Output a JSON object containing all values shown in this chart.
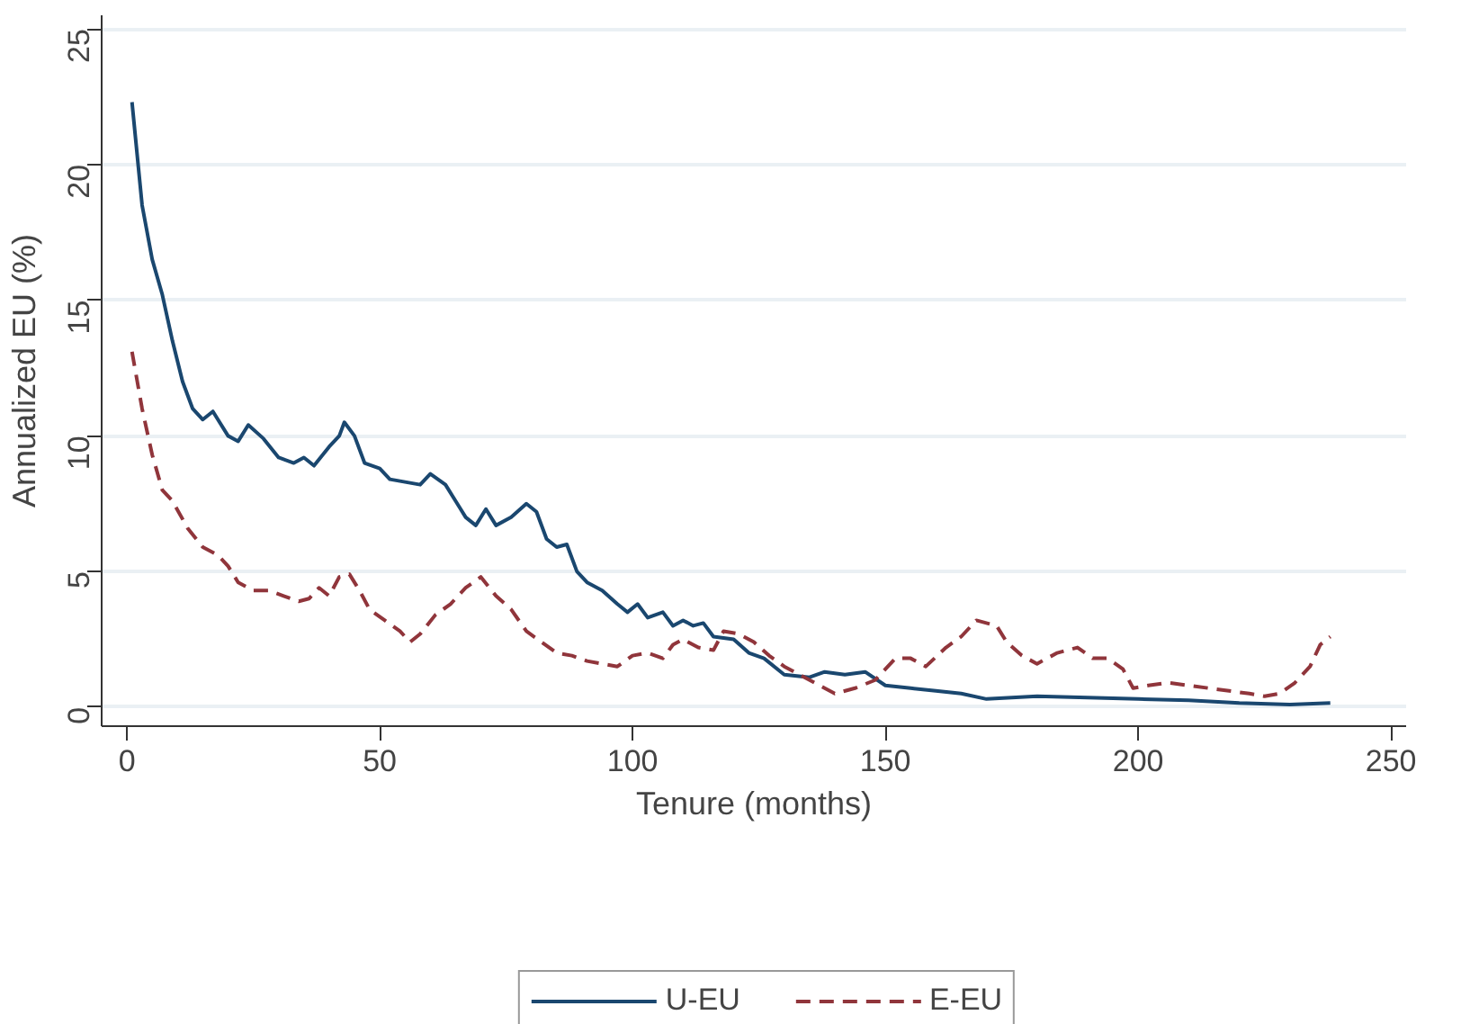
{
  "chart_data": {
    "type": "line",
    "xlabel": "Tenure (months)",
    "ylabel": "Annualized EU (%)",
    "xlim": [
      -5,
      253
    ],
    "ylim": [
      -0.7,
      25.5
    ],
    "xticks": [
      0,
      50,
      100,
      150,
      200,
      250
    ],
    "yticks": [
      0,
      5,
      10,
      15,
      20,
      25
    ],
    "grid": "y",
    "legend": "bottom",
    "series": [
      {
        "name": "U-EU",
        "color": "#1a476f",
        "line_style": "solid",
        "x": [
          1,
          3,
          5,
          7,
          9,
          11,
          13,
          15,
          17,
          20,
          22,
          24,
          27,
          30,
          33,
          35,
          37,
          40,
          42,
          43,
          45,
          47,
          50,
          52,
          55,
          58,
          60,
          63,
          65,
          67,
          69,
          71,
          73,
          76,
          79,
          81,
          83,
          85,
          87,
          89,
          91,
          94,
          97,
          99,
          101,
          103,
          106,
          108,
          110,
          112,
          114,
          116,
          120,
          123,
          126,
          130,
          135,
          138,
          142,
          146,
          150,
          155,
          160,
          165,
          170,
          180,
          190,
          200,
          210,
          220,
          230,
          238
        ],
        "values": [
          22.3,
          18.5,
          16.5,
          15.2,
          13.5,
          12,
          11,
          10.6,
          10.9,
          10,
          9.8,
          10.4,
          9.9,
          9.2,
          9,
          9.2,
          8.9,
          9.6,
          10,
          10.5,
          10,
          9,
          8.8,
          8.4,
          8.3,
          8.2,
          8.6,
          8.2,
          7.6,
          7,
          6.7,
          7.3,
          6.7,
          7,
          7.5,
          7.2,
          6.2,
          5.9,
          6,
          5,
          4.6,
          4.3,
          3.8,
          3.5,
          3.8,
          3.3,
          3.5,
          3,
          3.2,
          3,
          3.1,
          2.6,
          2.5,
          2,
          1.8,
          1.2,
          1.1,
          1.3,
          1.2,
          1.3,
          0.8,
          0.7,
          0.6,
          0.5,
          0.3,
          0.4,
          0.35,
          0.3,
          0.25,
          0.15,
          0.1,
          0.15
        ]
      },
      {
        "name": "E-EU",
        "color": "#90353b",
        "line_style": "dashed",
        "x": [
          1,
          3,
          5,
          7,
          9,
          12,
          15,
          18,
          20,
          22,
          25,
          28,
          31,
          34,
          36,
          38,
          40,
          42,
          44,
          46,
          48,
          51,
          54,
          56,
          58,
          61,
          64,
          67,
          70,
          73,
          76,
          79,
          82,
          85,
          88,
          91,
          94,
          97,
          100,
          103,
          106,
          108,
          110,
          113,
          116,
          118,
          121,
          124,
          127,
          130,
          133,
          136,
          140,
          144,
          148,
          150,
          152,
          155,
          158,
          162,
          165,
          168,
          172,
          174,
          177,
          180,
          184,
          188,
          191,
          194,
          197,
          199,
          202,
          206,
          210,
          214,
          218,
          222,
          225,
          228,
          231,
          234,
          236,
          238
        ],
        "values": [
          13.1,
          11,
          9.3,
          8,
          7.6,
          6.6,
          5.9,
          5.6,
          5.2,
          4.6,
          4.3,
          4.3,
          4.1,
          3.9,
          4,
          4.4,
          4.1,
          4.8,
          4.9,
          4.3,
          3.6,
          3.2,
          2.8,
          2.4,
          2.7,
          3.4,
          3.8,
          4.4,
          4.8,
          4.1,
          3.6,
          2.8,
          2.4,
          2,
          1.9,
          1.7,
          1.6,
          1.5,
          1.9,
          2,
          1.8,
          2.3,
          2.5,
          2.2,
          2.1,
          2.8,
          2.7,
          2.4,
          1.9,
          1.5,
          1.2,
          0.9,
          0.5,
          0.7,
          1,
          1.4,
          1.8,
          1.8,
          1.5,
          2.2,
          2.6,
          3.2,
          3,
          2.4,
          1.9,
          1.6,
          2,
          2.2,
          1.8,
          1.8,
          1.4,
          0.7,
          0.8,
          0.9,
          0.8,
          0.7,
          0.6,
          0.5,
          0.4,
          0.5,
          0.9,
          1.5,
          2.3,
          2.6
        ]
      }
    ]
  }
}
